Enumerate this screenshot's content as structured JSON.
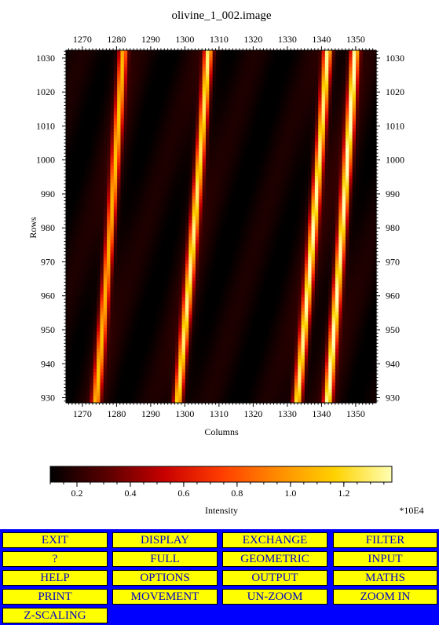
{
  "window": {
    "title": "olivine_1_002.image"
  },
  "plot": {
    "x_label": "Columns",
    "y_label": "Rows",
    "x_ticks": [
      "1270",
      "1280",
      "1290",
      "1300",
      "1310",
      "1320",
      "1330",
      "1340",
      "1350"
    ],
    "y_ticks": [
      "1030",
      "1020",
      "1010",
      "1000",
      "990",
      "980",
      "970",
      "960",
      "950",
      "940",
      "930"
    ],
    "line_center_columns_at_row_1030": [
      1282,
      1307,
      1342,
      1350
    ],
    "line_center_columns_at_row_930": [
      1274,
      1298,
      1333,
      1342
    ],
    "line_peak_intensity_1e4": [
      1.05,
      1.25,
      1.3,
      1.35
    ]
  },
  "colorbar": {
    "label": "Intensity",
    "scale_note": "*10E4",
    "ticks": [
      "0.2",
      "0.4",
      "0.6",
      "0.8",
      "1.0",
      "1.2"
    ],
    "range": [
      0.1,
      1.38
    ],
    "colormap": [
      "#000000",
      "#5a0000",
      "#c80000",
      "#ff3c00",
      "#ff8c00",
      "#ffd200",
      "#ffffb4"
    ]
  },
  "menu": {
    "rows": [
      [
        "EXIT",
        "DISPLAY",
        "EXCHANGE",
        "FILTER"
      ],
      [
        "?",
        "FULL",
        "GEOMETRIC",
        "INPUT"
      ],
      [
        "HELP",
        "OPTIONS",
        "OUTPUT",
        "MATHS"
      ],
      [
        "PRINT",
        "MOVEMENT",
        "UN-ZOOM",
        "ZOOM IN"
      ],
      [
        "Z-SCALING"
      ]
    ],
    "button_color": "#ffff00",
    "text_color": "#0000cc",
    "background_color": "#0000ff"
  }
}
